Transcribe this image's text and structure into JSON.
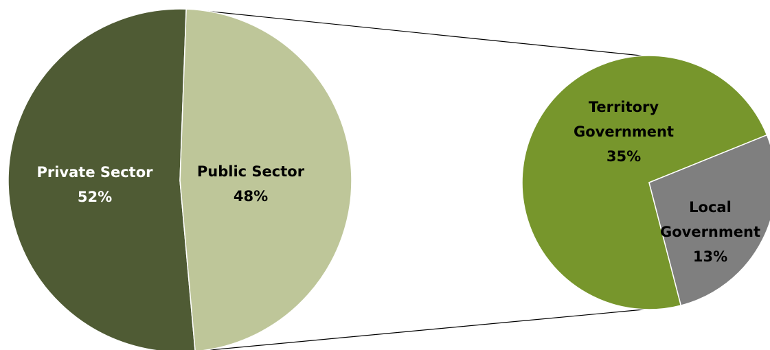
{
  "chart_data": {
    "type": "pie",
    "main_pie": {
      "slices": [
        {
          "name": "Private Sector",
          "label": "Private Sector",
          "value_label": "52%",
          "value": 52,
          "color": "#4f5b34",
          "text_color": "#ffffff"
        },
        {
          "name": "Public Sector",
          "label": "Public Sector",
          "value_label": "48%",
          "value": 48,
          "color": "#bec699",
          "text_color": "#000000"
        }
      ]
    },
    "breakout_pie": {
      "source": "Public Sector",
      "slices": [
        {
          "name": "Territory Government",
          "label_lines": [
            "Territory",
            "Government"
          ],
          "value_label": "35%",
          "value": 35,
          "color": "#77962c",
          "text_color": "#000000"
        },
        {
          "name": "Local Government",
          "label_lines": [
            "Local",
            "Government"
          ],
          "value_label": "13%",
          "value": 13,
          "color": "#7f7f7f",
          "text_color": "#000000"
        }
      ]
    },
    "connector_color": "#000000",
    "legend": "none"
  }
}
